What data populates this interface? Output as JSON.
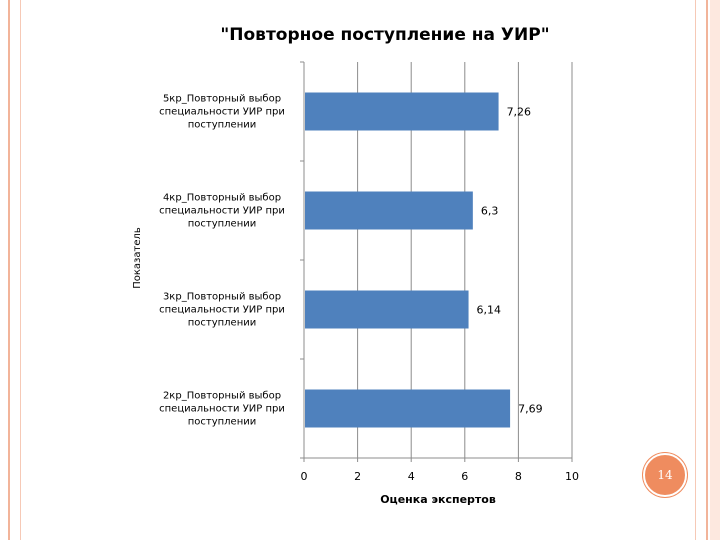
{
  "slide": {
    "page_number": "14"
  },
  "colors": {
    "bar": "#4f81bd",
    "frame": "#f2b49a",
    "badge": "#ef8c5f"
  },
  "chart_data": {
    "type": "bar",
    "orientation": "horizontal",
    "title": "\"Повторное поступление на УИР\"",
    "xlabel": "Оценка экспертов",
    "ylabel": "Показатель",
    "categories": [
      [
        "5кр_Повторный выбор",
        "специальности УИР при",
        "поступлении"
      ],
      [
        "4кр_Повторный выбор",
        "специальности УИР при",
        "поступлении"
      ],
      [
        "3кр_Повторный выбор",
        "специальности УИР при",
        "поступлении"
      ],
      [
        "2кр_Повторный выбор",
        "специальности УИР при",
        "поступлении"
      ]
    ],
    "values": [
      7.26,
      6.3,
      6.14,
      7.69
    ],
    "value_labels": [
      "7,26",
      "6,3",
      "6,14",
      "7,69"
    ],
    "xlim": [
      0,
      10
    ],
    "xticks": [
      0,
      2,
      4,
      6,
      8,
      10
    ],
    "xtick_labels": [
      "0",
      "2",
      "4",
      "6",
      "8",
      "10"
    ],
    "grid": "vertical",
    "legend": "none"
  }
}
